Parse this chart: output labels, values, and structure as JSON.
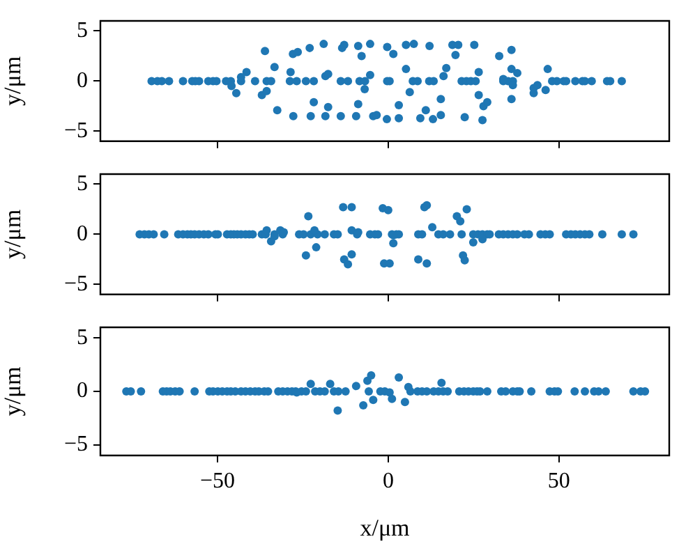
{
  "chart_data": [
    {
      "type": "scatter",
      "ylabel": "y/μm",
      "xlim": [
        -84.3,
        82.3
      ],
      "xticks": [
        -50,
        0,
        50
      ],
      "ylim": [
        -6,
        6
      ],
      "yticks": [
        -5,
        0,
        5
      ],
      "tick_labels": "y",
      "grid": false,
      "marker": "circle",
      "legend": false,
      "series": [
        {
          "color": "#1f77b4",
          "x": [
            -69.3,
            -67.6,
            -66.3,
            -64.2,
            -60.1,
            -57.4,
            -56.5,
            -55.4,
            -52.7,
            -51.3,
            -50.3,
            -47.5,
            -46.1,
            -43.1,
            -39.0,
            -35.6,
            -34.3,
            -28.8,
            -26.8,
            -24.1,
            -21.8,
            -13.9,
            -11.8,
            -8.4,
            -6.8,
            -0.3,
            0.4,
            7.2,
            8.6,
            12.0,
            13.3,
            21.5,
            22.9,
            24.2,
            25.6,
            33.7,
            35.1,
            36.5,
            48.0,
            49.4,
            51.4,
            52.1,
            54.8,
            56.9,
            57.6,
            59.6,
            64.1,
            65.0,
            68.4,
            -45.9,
            -44.5,
            -41.5,
            -43.1,
            -37.0,
            -35.6,
            -33.3,
            -32.5,
            -36.1,
            -28.6,
            -27.8,
            -27.9,
            -26.5,
            -23.0,
            -22.7,
            -21.8,
            -18.9,
            -18.4,
            -17.6,
            -17.6,
            -18.4,
            -13.9,
            -13.5,
            -12.9,
            -8.8,
            -7.8,
            -8.8,
            -9.4,
            -5.3,
            -5.3,
            -6.9,
            -4.4,
            -3.4,
            -0.3,
            -0.4,
            1.5,
            3.1,
            3.1,
            5.2,
            7.5,
            5.2,
            6.3,
            9.4,
            11.0,
            12.1,
            13.1,
            15.4,
            15.4,
            16.2,
            17.0,
            18.8,
            20.5,
            19.7,
            25.2,
            22.4,
            26.5,
            26.5,
            27.6,
            27.9,
            29.0,
            32.5,
            36.1,
            36.1,
            37.8,
            33.7,
            36.5,
            36.1,
            42.6,
            42.6,
            43.7,
            46.1,
            46.7
          ],
          "values": [
            0,
            0,
            0,
            0,
            0,
            0,
            0,
            0,
            0,
            0,
            0,
            0,
            0,
            0,
            0,
            0,
            0,
            0,
            0,
            0,
            0,
            0,
            0,
            0,
            0,
            0,
            0,
            0,
            0,
            0,
            0,
            0,
            0,
            0,
            0,
            0,
            0,
            0,
            0,
            0,
            0,
            0,
            0,
            0,
            0,
            0,
            0,
            0,
            0,
            -0.5,
            -1.2,
            0.9,
            0.4,
            -1.4,
            -1.0,
            1.4,
            -2.9,
            3.0,
            0.9,
            -3.5,
            2.7,
            2.9,
            3.3,
            -3.5,
            -2.1,
            3.7,
            0.5,
            0.7,
            -2.6,
            -3.5,
            -3.5,
            3.3,
            3.6,
            3.5,
            2.5,
            -2.3,
            -3.5,
            3.7,
            0.6,
            -0.8,
            -3.5,
            -3.4,
            3.4,
            -3.8,
            2.7,
            -2.4,
            -3.7,
            3.6,
            3.7,
            1.2,
            -1.1,
            -3.7,
            -2.9,
            3.5,
            -3.8,
            -3.4,
            -1.8,
            0.5,
            1.3,
            3.6,
            3.6,
            2.6,
            3.6,
            -3.6,
            0.9,
            -1.4,
            -3.9,
            -2.5,
            -2.1,
            2.5,
            3.1,
            1.2,
            0.8,
            0.2,
            -0.4,
            -1.8,
            -0.7,
            -1.2,
            -0.4,
            -0.9,
            1.2
          ]
        }
      ]
    },
    {
      "type": "scatter",
      "ylabel": "y/μm",
      "xlim": [
        -84.3,
        82.3
      ],
      "xticks": [
        -50,
        0,
        50
      ],
      "ylim": [
        -6,
        6
      ],
      "yticks": [
        -5,
        0,
        5
      ],
      "tick_labels": "y",
      "grid": false,
      "marker": "circle",
      "legend": false,
      "series": [
        {
          "color": "#1f77b4",
          "x": [
            -72.8,
            -71.4,
            -70.1,
            -68.7,
            -65.6,
            -61.5,
            -60.1,
            -58.8,
            -57.8,
            -56.7,
            -55.4,
            -54.0,
            -52.7,
            -50.6,
            -49.9,
            -47.2,
            -46.1,
            -45.2,
            -44.2,
            -43.1,
            -41.8,
            -40.7,
            -39.7,
            -37.0,
            -35.9,
            -33.3,
            -30.9,
            -26.1,
            -24.8,
            -22.7,
            -20.7,
            -18.6,
            -15.9,
            -14.8,
            -9.1,
            -5.3,
            -3.9,
            -3.0,
            1.1,
            2.4,
            3.1,
            8.8,
            9.9,
            14.7,
            16.1,
            18.1,
            21.5,
            24.9,
            26.3,
            27.6,
            29.0,
            29.7,
            32.4,
            33.7,
            35.1,
            36.5,
            37.8,
            39.9,
            41.2,
            44.6,
            46.0,
            47.3,
            52.1,
            53.5,
            54.8,
            56.2,
            57.6,
            58.9,
            62.7,
            68.4,
            71.8,
            -35.6,
            -34.3,
            -33.3,
            -31.6,
            -30.6,
            -23.4,
            -24.1,
            -21.6,
            -21.1,
            -13.2,
            -10.7,
            -10.7,
            -8.8,
            -12.9,
            -11.8,
            -10.7,
            -1.6,
            0.0,
            -1.2,
            0.4,
            1.5,
            1.5,
            8.8,
            11.3,
            10.6,
            11.3,
            12.9,
            20.1,
            21.1,
            23.0,
            21.9,
            22.4,
            24.9,
            27.6
          ],
          "values": [
            0,
            0,
            0,
            0,
            0,
            0,
            0,
            0,
            0,
            0,
            0,
            0,
            0,
            0,
            0,
            0,
            0,
            0,
            0,
            0,
            0,
            0,
            0,
            0,
            0,
            0,
            0,
            0,
            0,
            0,
            0,
            0,
            0,
            0,
            0,
            0,
            0,
            0,
            0,
            0,
            0,
            0,
            0,
            0,
            0,
            0,
            0,
            0,
            0,
            0,
            0,
            0,
            0,
            0,
            0,
            0,
            0,
            0,
            0,
            0,
            0,
            0,
            0,
            0,
            0,
            0,
            0,
            0,
            0,
            0,
            0,
            0.4,
            -0.7,
            -0.2,
            0.4,
            0.2,
            1.8,
            -2.1,
            0.4,
            -1.3,
            2.7,
            2.7,
            0.4,
            0.2,
            -2.5,
            -3.0,
            -2.0,
            2.6,
            2.4,
            -2.9,
            -2.9,
            -0.9,
            -0.1,
            -2.5,
            -2.9,
            2.7,
            2.9,
            0.7,
            1.8,
            1.3,
            2.5,
            -2.1,
            -2.6,
            -0.8,
            -0.5
          ]
        }
      ]
    },
    {
      "type": "scatter",
      "xlabel": "x/μm",
      "ylabel": "y/μm",
      "xlim": [
        -84.3,
        82.3
      ],
      "xticks": [
        -50,
        0,
        50
      ],
      "ylim": [
        -6,
        6
      ],
      "yticks": [
        -5,
        0,
        5
      ],
      "grid": false,
      "marker": "circle",
      "legend": false,
      "series": [
        {
          "color": "#1f77b4",
          "x": [
            -76.7,
            -75.4,
            -72.4,
            -66.0,
            -64.9,
            -63.8,
            -62.4,
            -61.1,
            -56.7,
            -52.4,
            -51.3,
            -49.9,
            -48.6,
            -47.2,
            -46.1,
            -44.8,
            -43.1,
            -41.8,
            -40.4,
            -39.0,
            -37.9,
            -36.3,
            -35.2,
            -32.2,
            -30.9,
            -29.5,
            -28.2,
            -27.1,
            -25.4,
            -24.1,
            -21.4,
            -20.0,
            -18.6,
            -15.9,
            -14.6,
            -12.5,
            -5.7,
            -2.3,
            -1.0,
            6.5,
            8.6,
            9.9,
            11.3,
            13.3,
            14.7,
            16.1,
            17.4,
            20.8,
            22.2,
            23.5,
            24.9,
            26.0,
            26.9,
            29.0,
            33.1,
            34.4,
            36.5,
            37.8,
            38.5,
            41.9,
            47.3,
            48.7,
            49.7,
            54.6,
            57.6,
            60.3,
            61.6,
            63.7,
            71.8,
            73.9,
            75.2,
            -22.7,
            -17.0,
            -14.8,
            -9.4,
            -7.3,
            -6.1,
            -5.0,
            -4.4,
            1.1,
            3.1,
            4.9,
            5.9,
            15.6,
            -26.8,
            0.4
          ],
          "values": [
            0,
            0,
            0,
            0,
            0,
            0,
            0,
            0,
            0,
            0,
            0,
            0,
            0,
            0,
            0,
            0,
            0,
            0,
            0,
            0,
            0,
            0,
            0,
            0,
            0,
            0,
            0,
            0,
            0,
            0,
            0,
            0,
            0,
            0,
            0,
            0,
            0,
            0,
            0,
            0,
            0,
            0,
            0,
            0,
            0,
            0,
            0,
            0,
            0,
            0,
            0,
            0,
            0,
            0,
            0,
            0,
            0,
            0,
            0,
            0,
            0,
            0,
            0,
            0,
            0,
            0,
            0,
            0,
            0,
            0,
            0,
            0.7,
            0.7,
            -1.8,
            0.5,
            -1.3,
            1.0,
            1.5,
            -0.8,
            -0.7,
            1.3,
            -1.0,
            0.4,
            0.8,
            -0.1,
            -0.1
          ]
        }
      ]
    }
  ]
}
